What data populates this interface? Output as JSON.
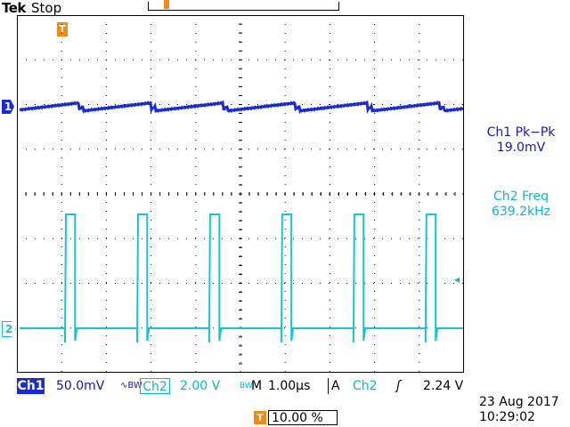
{
  "header": {
    "brand": "Tek",
    "run_state": "Stop"
  },
  "markers": {
    "ch1": "1",
    "ch2": "2",
    "trigger_position": "T"
  },
  "measurements": [
    {
      "label": "Ch1 Pk−Pk",
      "value": "19.0mV",
      "color": "#1a1a9a"
    },
    {
      "label": "Ch2 Freq",
      "value": "639.2kHz",
      "color": "#10b5c9"
    }
  ],
  "trigger_level_arrow": "◂",
  "status": {
    "ch1_label": "Ch1",
    "ch1_scale": "50.0mV",
    "ch1_flags": "∿BW",
    "ch2_label": "Ch2",
    "ch2_scale": "2.00 V",
    "ch2_flags": "BW",
    "timebase_label": "M",
    "timebase_scale": "1.00μs",
    "trigger_mode": "A",
    "trigger_source": "Ch2",
    "trigger_slope": "ʃ",
    "trigger_level": "2.24 V"
  },
  "horizontal_position": {
    "icon": "T",
    "value": "10.00 %"
  },
  "datetime": {
    "date": "23 Aug 2017",
    "time": "10:29:02"
  },
  "colors": {
    "ch1": "#1c2bd0",
    "ch2": "#18c3d6",
    "accent": "#f08a1a",
    "grid": "#000000"
  },
  "chart_data": {
    "type": "line",
    "x_divisions": 10,
    "y_divisions": 8,
    "series": [
      {
        "name": "Ch1",
        "shape": "sawtooth",
        "cycles": 6.2
      },
      {
        "name": "Ch2",
        "shape": "pulse",
        "cycles": 6.2,
        "duty": 0.14
      }
    ]
  }
}
